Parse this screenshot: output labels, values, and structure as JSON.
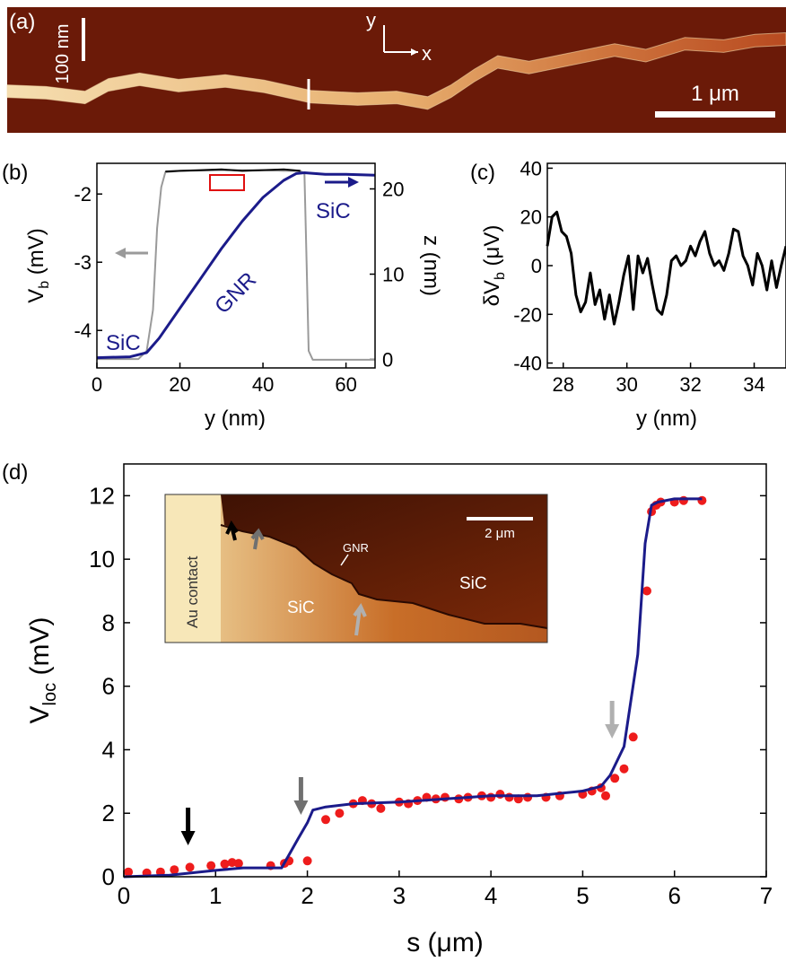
{
  "chart_data": [
    {
      "panel": "(a)",
      "type": "image",
      "labels": {
        "scale_z": "100 nm",
        "axis_y": "y",
        "axis_x": "x",
        "scale_bar": "1 μm"
      },
      "colors": {
        "background": "#6b1a08",
        "ribbon": "#e0a060"
      },
      "profile_points": [
        [
          0.0,
          0.7
        ],
        [
          0.05,
          0.72
        ],
        [
          0.1,
          0.78
        ],
        [
          0.13,
          0.62
        ],
        [
          0.17,
          0.55
        ],
        [
          0.22,
          0.63
        ],
        [
          0.28,
          0.57
        ],
        [
          0.33,
          0.64
        ],
        [
          0.39,
          0.77
        ],
        [
          0.45,
          0.8
        ],
        [
          0.5,
          0.78
        ],
        [
          0.54,
          0.85
        ],
        [
          0.57,
          0.7
        ],
        [
          0.6,
          0.5
        ],
        [
          0.63,
          0.33
        ],
        [
          0.67,
          0.4
        ],
        [
          0.72,
          0.3
        ],
        [
          0.78,
          0.18
        ],
        [
          0.82,
          0.25
        ],
        [
          0.87,
          0.1
        ],
        [
          0.92,
          0.13
        ],
        [
          0.96,
          0.06
        ],
        [
          1.0,
          0.04
        ]
      ]
    },
    {
      "panel": "(b)",
      "type": "line",
      "xlabel": "y (nm)",
      "ylabel_left": "V_b (mV)",
      "ylabel_right": "z (nm)",
      "xlim": [
        0,
        67
      ],
      "ylim_left": [
        -4.55,
        -1.55
      ],
      "ylim_right": [
        -1,
        23
      ],
      "xticks": [
        "0",
        "20",
        "40",
        "60"
      ],
      "yticks_left": [
        "-2",
        "-3",
        "-4"
      ],
      "yticks_right": [
        "20",
        "10",
        "0"
      ],
      "annotations": [
        "SiC",
        "GNR",
        "SiC"
      ],
      "series": [
        {
          "name": "V_b",
          "axis": "left",
          "color": "#9a9a9a",
          "x": [
            0,
            10,
            12,
            13.5,
            14.5,
            15.5,
            16.5,
            20,
            30,
            40,
            45,
            49,
            50,
            50.5,
            51,
            52,
            60,
            67
          ],
          "y": [
            -4.42,
            -4.42,
            -4.3,
            -3.7,
            -2.5,
            -1.9,
            -1.68,
            -1.66,
            -1.65,
            -1.65,
            -1.66,
            -1.66,
            -1.7,
            -3.0,
            -4.3,
            -4.43,
            -4.43,
            -4.43
          ]
        },
        {
          "name": "V_b (plateau)",
          "axis": "left",
          "color": "#000000",
          "x": [
            16.5,
            20,
            25,
            30,
            35,
            40,
            45,
            49
          ],
          "y": [
            -1.67,
            -1.66,
            -1.65,
            -1.64,
            -1.66,
            -1.65,
            -1.64,
            -1.66
          ]
        },
        {
          "name": "z",
          "axis": "right",
          "color": "#1b1b8a",
          "x": [
            0,
            8,
            12,
            15,
            20,
            25,
            30,
            35,
            40,
            45,
            48,
            50,
            55,
            60,
            67
          ],
          "y": [
            0.2,
            0.3,
            0.8,
            2.5,
            6.0,
            9.5,
            13.0,
            16.2,
            19.0,
            21.0,
            21.8,
            21.9,
            21.7,
            21.7,
            21.6
          ]
        }
      ]
    },
    {
      "panel": "(c)",
      "type": "line",
      "xlabel": "y (nm)",
      "ylabel": "δV_b (μV)",
      "xlim": [
        27.5,
        35.0
      ],
      "ylim": [
        -42,
        42
      ],
      "xticks": [
        "28",
        "30",
        "32",
        "34"
      ],
      "yticks": [
        "40",
        "20",
        "0",
        "-20",
        "-40"
      ],
      "series": [
        {
          "color": "#000000",
          "x": [
            27.5,
            27.65,
            27.8,
            27.95,
            28.1,
            28.25,
            28.4,
            28.55,
            28.7,
            28.85,
            29.0,
            29.15,
            29.3,
            29.45,
            29.6,
            29.75,
            29.9,
            30.05,
            30.2,
            30.35,
            30.5,
            30.65,
            30.8,
            30.95,
            31.1,
            31.25,
            31.4,
            31.55,
            31.7,
            31.85,
            32.0,
            32.15,
            32.3,
            32.45,
            32.6,
            32.75,
            32.9,
            33.05,
            33.2,
            33.35,
            33.5,
            33.65,
            33.8,
            33.95,
            34.1,
            34.25,
            34.4,
            34.55,
            34.7,
            34.85,
            35.0
          ],
          "y": [
            8,
            20,
            22,
            14,
            12,
            5,
            -12,
            -19,
            -15,
            -3,
            -16,
            -10,
            -22,
            -12,
            -24,
            -15,
            -4,
            4,
            -18,
            4,
            -3,
            3,
            -8,
            -18,
            -20,
            -12,
            2,
            4,
            0,
            2,
            8,
            4,
            10,
            14,
            5,
            0,
            2,
            -2,
            5,
            15,
            14,
            4,
            0,
            -8,
            5,
            0,
            -10,
            2,
            -9,
            0,
            8
          ]
        }
      ]
    },
    {
      "panel": "(d)",
      "type": "scatter",
      "xlabel": "s (μm)",
      "ylabel": "V_loc (mV)",
      "xlim": [
        0,
        7
      ],
      "ylim": [
        0,
        13
      ],
      "xticks": [
        "0",
        "1",
        "2",
        "3",
        "4",
        "5",
        "6",
        "7"
      ],
      "yticks": [
        "0",
        "2",
        "4",
        "6",
        "8",
        "10",
        "12"
      ],
      "arrows": [
        {
          "x": 0.7,
          "color": "#000000"
        },
        {
          "x": 1.93,
          "color": "#707070"
        },
        {
          "x": 5.32,
          "color": "#b0b0b0"
        }
      ],
      "series": [
        {
          "name": "measured",
          "color": "#ee1c1c",
          "x": [
            0.05,
            0.25,
            0.4,
            0.55,
            0.72,
            0.95,
            1.1,
            1.18,
            1.25,
            1.6,
            1.75,
            1.8,
            2.0,
            2.2,
            2.35,
            2.5,
            2.6,
            2.7,
            2.8,
            3.0,
            3.1,
            3.2,
            3.3,
            3.4,
            3.5,
            3.65,
            3.75,
            3.9,
            4.0,
            4.1,
            4.2,
            4.3,
            4.4,
            4.6,
            4.75,
            5.0,
            5.1,
            5.2,
            5.25,
            5.35,
            5.45,
            5.55,
            5.7,
            5.75,
            5.8,
            5.85,
            6.0,
            6.1,
            6.3
          ],
          "y": [
            0.15,
            0.12,
            0.15,
            0.22,
            0.3,
            0.35,
            0.4,
            0.45,
            0.42,
            0.35,
            0.42,
            0.5,
            0.5,
            1.8,
            2.0,
            2.3,
            2.4,
            2.3,
            2.15,
            2.35,
            2.3,
            2.4,
            2.5,
            2.45,
            2.5,
            2.45,
            2.5,
            2.55,
            2.5,
            2.6,
            2.5,
            2.45,
            2.5,
            2.5,
            2.55,
            2.6,
            2.7,
            2.8,
            2.55,
            3.1,
            3.4,
            4.4,
            9.0,
            11.5,
            11.7,
            11.8,
            11.8,
            11.85,
            11.85
          ]
        },
        {
          "name": "fit",
          "color": "#1b1b8a",
          "x": [
            0.0,
            0.5,
            1.0,
            1.3,
            1.72,
            1.9,
            2.0,
            2.06,
            2.2,
            2.5,
            3.0,
            3.5,
            4.0,
            4.5,
            5.0,
            5.2,
            5.3,
            5.45,
            5.6,
            5.68,
            5.75,
            5.82,
            6.0,
            6.3
          ],
          "y": [
            0.0,
            0.05,
            0.2,
            0.28,
            0.28,
            1.2,
            1.7,
            2.1,
            2.2,
            2.3,
            2.35,
            2.45,
            2.55,
            2.55,
            2.7,
            2.85,
            3.2,
            4.1,
            7.0,
            10.5,
            11.7,
            11.8,
            11.9,
            11.9
          ]
        }
      ],
      "inset": {
        "labels": {
          "contact": "Au contact",
          "sic_left": "SiC",
          "sic_right": "SiC",
          "gnr": "GNR",
          "scale_bar": "2 μm"
        }
      }
    }
  ],
  "panel_labels": {
    "a": "(a)",
    "b": "(b)",
    "c": "(c)",
    "d": "(d)"
  },
  "text": {
    "b_xlabel": "y (nm)",
    "c_xlabel": "y (nm)",
    "d_xlabel": "s (μm)",
    "b_sic_left": "SiC",
    "b_sic_right": "SiC",
    "b_gnr": "GNR",
    "b_ylabel_main": "V",
    "b_ylabel_sub": "b",
    "b_ylabel_unit": " (mV)",
    "b_ylabel_right": "z (nm)",
    "c_ylabel_main": "δV",
    "c_ylabel_sub": "b",
    "c_ylabel_unit": " (μV)",
    "d_ylabel_main": "V",
    "d_ylabel_sub": "loc",
    "d_ylabel_unit": " (mV)"
  }
}
